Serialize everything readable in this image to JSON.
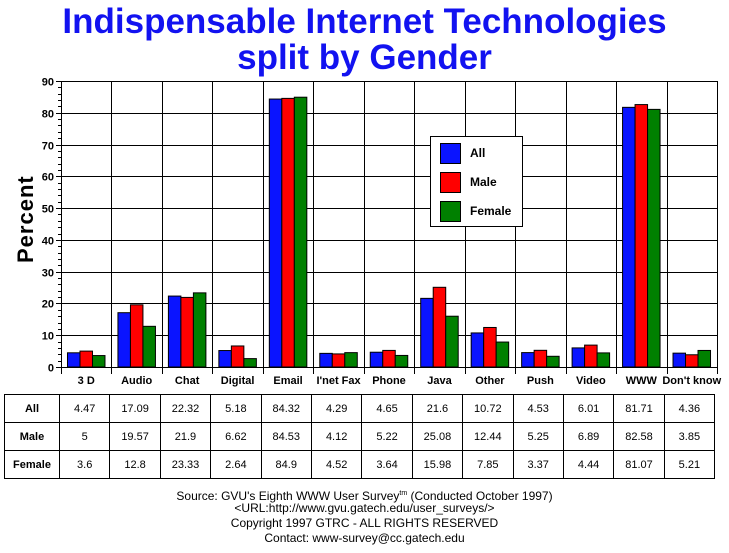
{
  "title": {
    "line1": "Indispensable Internet Technologies",
    "line2": "split by Gender"
  },
  "colors": {
    "title": "#1212f0",
    "All": "#0a14ff",
    "Male": "#ff0000",
    "Female": "#008000"
  },
  "legend": {
    "items": [
      {
        "label": "All",
        "color": "#0a14ff"
      },
      {
        "label": "Male",
        "color": "#ff0000"
      },
      {
        "label": "Female",
        "color": "#008000"
      }
    ]
  },
  "table": {
    "rows": [
      {
        "label": "All",
        "values": [
          "4.47",
          "17.09",
          "22.32",
          "5.18",
          "84.32",
          "4.29",
          "4.65",
          "21.6",
          "10.72",
          "4.53",
          "6.01",
          "81.71",
          "4.36"
        ]
      },
      {
        "label": "Male",
        "values": [
          "5",
          "19.57",
          "21.9",
          "6.62",
          "84.53",
          "4.12",
          "5.22",
          "25.08",
          "12.44",
          "5.25",
          "6.89",
          "82.58",
          "3.85"
        ]
      },
      {
        "label": "Female",
        "values": [
          "3.6",
          "12.8",
          "23.33",
          "2.64",
          "84.9",
          "4.52",
          "3.64",
          "15.98",
          "7.85",
          "3.37",
          "4.44",
          "81.07",
          "5.21"
        ]
      }
    ]
  },
  "footer": {
    "source": "Source: GVU's Eighth WWW User Survey",
    "tm": "tm",
    "conducted": " (Conducted October 1997)",
    "url": "<URL:http://www.gvu.gatech.edu/user_surveys/>",
    "copyright": "Copyright 1997 GTRC - ALL RIGHTS RESERVED",
    "contact": "Contact: www-survey@cc.gatech.edu"
  },
  "chart_data": {
    "type": "bar",
    "title": "Indispensable Internet Technologies split by Gender",
    "xlabel": "",
    "ylabel": "Percent",
    "ylim": [
      0,
      90
    ],
    "yticks": [
      0,
      10,
      20,
      30,
      40,
      50,
      60,
      70,
      80,
      90
    ],
    "grid": true,
    "legend_position": "inside-upper-center",
    "categories": [
      "3 D",
      "Audio",
      "Chat",
      "Digital",
      "Email",
      "I'net Fax",
      "Phone",
      "Java",
      "Other",
      "Push",
      "Video",
      "WWW",
      "Don't know"
    ],
    "series": [
      {
        "name": "All",
        "color": "#0a14ff",
        "values": [
          4.47,
          17.09,
          22.32,
          5.18,
          84.32,
          4.29,
          4.65,
          21.6,
          10.72,
          4.53,
          6.01,
          81.71,
          4.36
        ]
      },
      {
        "name": "Male",
        "color": "#ff0000",
        "values": [
          5,
          19.57,
          21.9,
          6.62,
          84.53,
          4.12,
          5.22,
          25.08,
          12.44,
          5.25,
          6.89,
          82.58,
          3.85
        ]
      },
      {
        "name": "Female",
        "color": "#008000",
        "values": [
          3.6,
          12.8,
          23.33,
          2.64,
          84.9,
          4.52,
          3.64,
          15.98,
          7.85,
          3.37,
          4.44,
          81.07,
          5.21
        ]
      }
    ]
  }
}
